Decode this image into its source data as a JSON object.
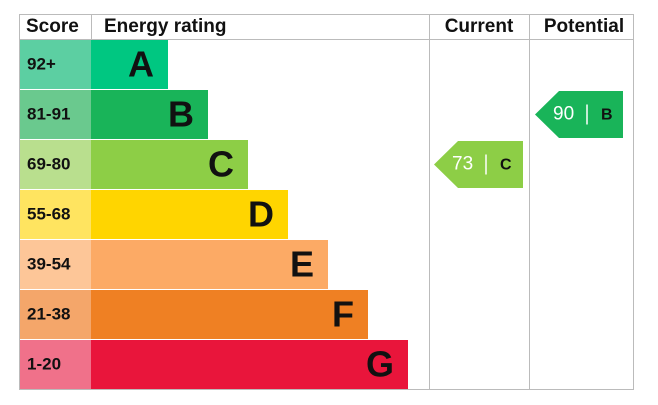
{
  "headers": {
    "score": "Score",
    "rating": "Energy rating",
    "current": "Current",
    "potential": "Potential"
  },
  "bands": [
    {
      "score": "92+",
      "letter": "A",
      "color": "#00c781",
      "score_color": "#5ccfa2"
    },
    {
      "score": "81-91",
      "letter": "B",
      "color": "#19b459",
      "score_color": "#6ac98e"
    },
    {
      "score": "69-80",
      "letter": "C",
      "color": "#8dce46",
      "score_color": "#b9df8e"
    },
    {
      "score": "55-68",
      "letter": "D",
      "color": "#ffd500",
      "score_color": "#ffe460"
    },
    {
      "score": "39-54",
      "letter": "E",
      "color": "#fcaa65",
      "score_color": "#fdc698"
    },
    {
      "score": "21-38",
      "letter": "F",
      "color": "#ef8023",
      "score_color": "#f4a66a"
    },
    {
      "score": "1-20",
      "letter": "G",
      "color": "#e9153b",
      "score_color": "#f0718a"
    }
  ],
  "current": {
    "value": 73,
    "letter": "C"
  },
  "potential": {
    "value": 90,
    "letter": "B"
  }
}
